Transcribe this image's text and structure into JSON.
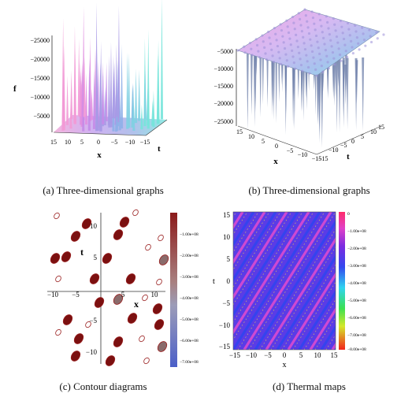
{
  "figure": {
    "panels": [
      {
        "id": "a",
        "caption": "(a)  Three-dimensional graphs",
        "axes": {
          "z_label": "f",
          "x_label": "x",
          "y_label": "t",
          "z_ticks": [
            "−25000",
            "−20000",
            "−15000",
            "−10000",
            "−5000"
          ],
          "x_ticks": [
            "15",
            "10",
            "5",
            "0",
            "−5",
            "−10",
            "−15"
          ]
        }
      },
      {
        "id": "b",
        "caption": "(b)  Three-dimensional graphs",
        "axes": {
          "x_label": "x",
          "y_label": "t",
          "z_ticks": [
            "−5000",
            "−10000",
            "−15000",
            "−20000",
            "−25000"
          ],
          "x_ticks": [
            "15",
            "10",
            "5",
            "0",
            "−5",
            "−10",
            "−15"
          ],
          "t_ticks": [
            "15",
            "10",
            "5",
            "0",
            "−5",
            "−10",
            "−15"
          ]
        }
      },
      {
        "id": "c",
        "caption": "(c)  Contour diagrams",
        "axes": {
          "x_label": "x",
          "y_label": "t",
          "x_ticks": [
            "−10",
            "−5",
            "5",
            "10"
          ],
          "y_ticks": [
            "10",
            "5",
            "−5",
            "−10"
          ],
          "colorbar": [
            "−1.00e+08",
            "−2.00e+08",
            "−3.00e+08",
            "−4.00e+08",
            "−5.00e+08",
            "−6.00e+08",
            "−7.00e+08"
          ]
        }
      },
      {
        "id": "d",
        "caption": "(d)  Thermal maps",
        "axes": {
          "x_label": "x",
          "y_label": "t",
          "x_ticks": [
            "−15",
            "−10",
            "−5",
            "0",
            "5",
            "10",
            "15"
          ],
          "y_ticks": [
            "15",
            "10",
            "5",
            "0",
            "−5",
            "−10",
            "−15"
          ],
          "colorbar": [
            "0",
            "−1.00e+08",
            "−2.00e+08",
            "−3.00e+08",
            "−4.00e+08",
            "−5.00e+08",
            "−6.00e+08",
            "−7.00e+08",
            "−8.00e+08"
          ]
        }
      }
    ]
  }
}
